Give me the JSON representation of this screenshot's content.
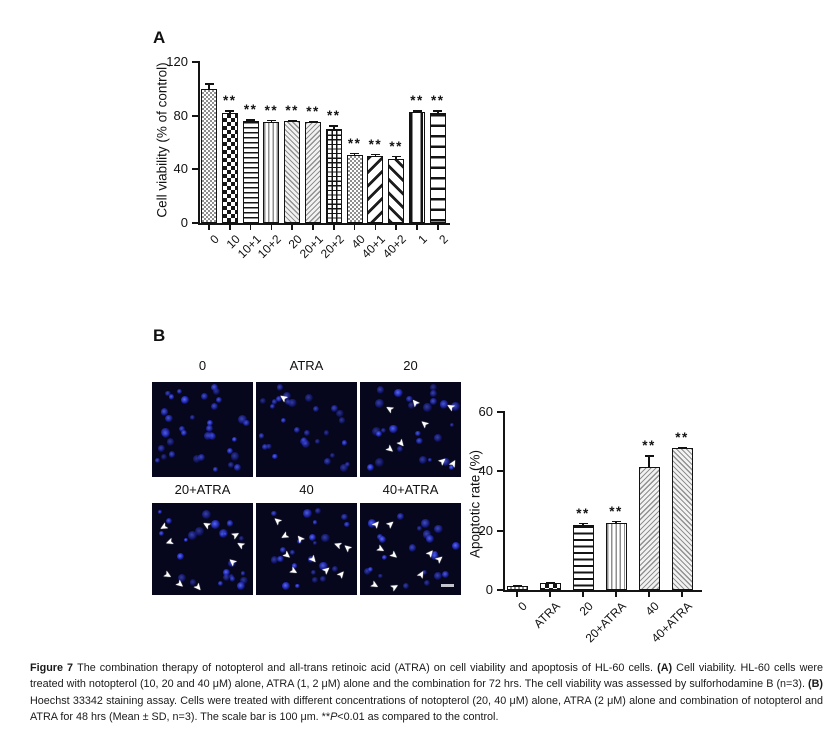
{
  "colors": {
    "bar_outline": "#121212",
    "micrograph_bg": "#06061c",
    "cell_blue": "#2a35e8",
    "arrow": "#ffffff",
    "scalebar": "#c4c4ce",
    "text": "#111111"
  },
  "panel_a": {
    "label": "A",
    "chart_index": 0
  },
  "panel_b": {
    "label": "B",
    "chart_index": 1,
    "tiles": [
      {
        "label": "0",
        "cells": 36,
        "seed": 11,
        "arrows": []
      },
      {
        "label": "ATRA",
        "cells": 30,
        "seed": 27,
        "arrows": [
          [
            24,
            11,
            215
          ]
        ]
      },
      {
        "label": "20",
        "cells": 27,
        "seed": 35,
        "arrows": [
          [
            26,
            22,
            210
          ],
          [
            51,
            16,
            230
          ],
          [
            86,
            20,
            210
          ],
          [
            60,
            38,
            220
          ],
          [
            25,
            66,
            40
          ],
          [
            36,
            60,
            50
          ],
          [
            78,
            79,
            320
          ],
          [
            89,
            81,
            300
          ]
        ]
      },
      {
        "label": "20+ATRA",
        "cells": 25,
        "seed": 43,
        "arrows": [
          [
            7,
            20,
            150
          ],
          [
            50,
            17,
            210
          ],
          [
            13,
            36,
            160
          ],
          [
            84,
            39,
            210
          ],
          [
            76,
            58,
            220
          ],
          [
            11,
            74,
            30
          ],
          [
            23,
            84,
            40
          ],
          [
            41,
            87,
            50
          ],
          [
            79,
            30,
            330
          ]
        ]
      },
      {
        "label": "40",
        "cells": 23,
        "seed": 57,
        "arrows": [
          [
            18,
            13,
            220
          ],
          [
            41,
            33,
            230
          ],
          [
            26,
            52,
            40
          ],
          [
            51,
            57,
            50
          ],
          [
            77,
            39,
            200
          ],
          [
            87,
            42,
            220
          ],
          [
            33,
            70,
            30
          ],
          [
            66,
            68,
            320
          ],
          [
            81,
            73,
            310
          ],
          [
            24,
            29,
            150
          ]
        ]
      },
      {
        "label": "40+ATRA",
        "cells": 22,
        "seed": 69,
        "arrows": [
          [
            13,
            19,
            310
          ],
          [
            27,
            18,
            320
          ],
          [
            16,
            46,
            30
          ],
          [
            29,
            52,
            40
          ],
          [
            66,
            50,
            310
          ],
          [
            75,
            57,
            320
          ],
          [
            10,
            85,
            30
          ],
          [
            31,
            87,
            330
          ],
          [
            57,
            73,
            300
          ]
        ]
      }
    ],
    "scalebar_tile": 5
  },
  "chart_data": [
    {
      "panel": "A",
      "type": "bar",
      "title": "",
      "ylabel": "Cell viability (% of control)",
      "xlabel": "",
      "ylim": [
        0,
        120
      ],
      "yticks": [
        0,
        40,
        80,
        120
      ],
      "grid": false,
      "legend": "none",
      "categories": [
        "0",
        "10",
        "10+1",
        "10+2",
        "20",
        "20+1",
        "20+2",
        "40",
        "40+1",
        "40+2",
        "1",
        "2"
      ],
      "values": [
        100,
        82,
        76,
        75,
        76,
        75,
        70,
        51,
        50,
        48,
        83,
        82
      ],
      "errors": [
        4,
        2,
        1.5,
        2,
        1,
        1,
        3,
        1.5,
        1.5,
        2,
        1,
        2
      ],
      "sig": [
        "",
        "**",
        "**",
        "**",
        "**",
        "**",
        "**",
        "**",
        "**",
        "**",
        "**",
        "**"
      ],
      "patterns": [
        "finecheck",
        "checker",
        "hlines",
        "vlines",
        "diaga",
        "diagb",
        "grid",
        "finecheck",
        "stripedown",
        "stripeup",
        "vstripe",
        "hstripe"
      ]
    },
    {
      "panel": "B",
      "type": "bar",
      "title": "",
      "ylabel": "Apoptotic rate (%)",
      "xlabel": "",
      "ylim": [
        0,
        60
      ],
      "yticks": [
        0,
        20,
        40,
        60
      ],
      "grid": false,
      "legend": "none",
      "categories": [
        "0",
        "ATRA",
        "20",
        "20+ATRA",
        "40",
        "40+ATRA"
      ],
      "values": [
        1.5,
        2.2,
        21.9,
        22.5,
        41.3,
        47.7
      ],
      "errors": [
        0.3,
        0.5,
        0.8,
        0.8,
        4.1,
        0.6
      ],
      "sig": [
        "",
        "",
        "**",
        "**",
        "**",
        "**"
      ],
      "patterns": [
        "finecheck",
        "checker",
        "hlinesmed",
        "vlines",
        "diagb",
        "diaga"
      ]
    }
  ],
  "caption": {
    "segments": [
      {
        "text": "Figure 7 ",
        "bold": true
      },
      {
        "text": "The combination therapy of notopterol and all-trans retinoic acid (ATRA) on cell viability and apoptosis of HL-60 cells. ",
        "bold": false
      },
      {
        "text": "(A)",
        "bold": true
      },
      {
        "text": " Cell viability. HL-60 cells were treated with notopterol (10, 20 and 40 μM) alone, ATRA (1, 2 μM) alone and the combination for 72 hrs. The cell viability was assessed by sulforhodamine B (n=3). ",
        "bold": false
      },
      {
        "text": "(B)",
        "bold": true
      },
      {
        "text": " Hoechst 33342 staining assay. Cells were treated with different concentrations of notopterol (20, 40 μM) alone, ATRA (2 μM) alone and combination of notopterol and ATRA for 48 hrs (Mean ± SD, n=3). The scale bar is 100 μm. **",
        "bold": false
      },
      {
        "text": "P",
        "italic": true
      },
      {
        "text": "<0.01 as compared to the control.",
        "bold": false
      }
    ]
  }
}
